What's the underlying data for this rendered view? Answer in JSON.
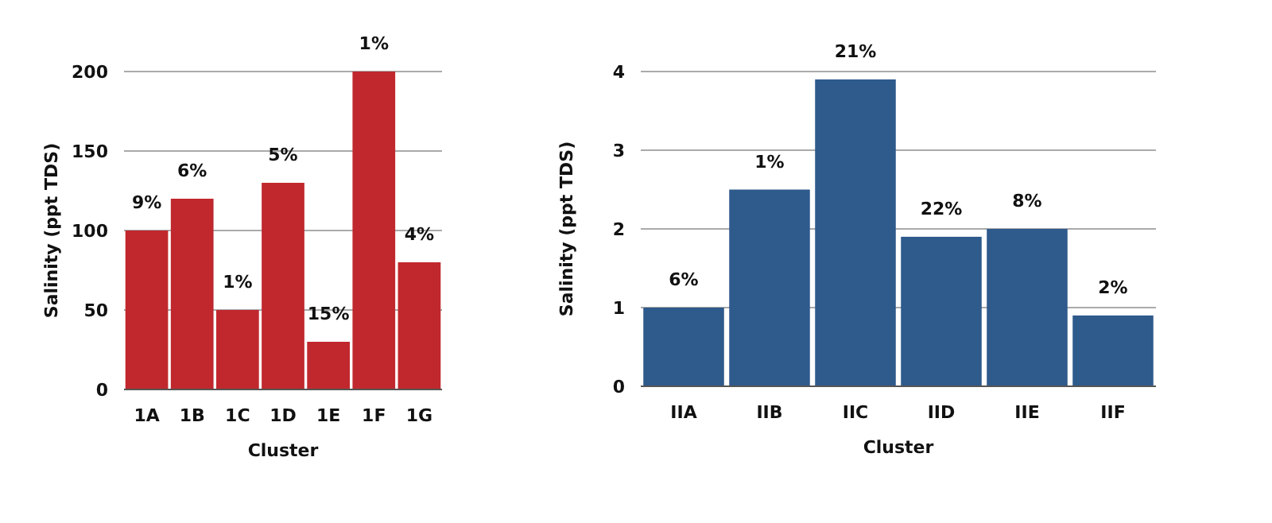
{
  "chart_data": [
    {
      "type": "bar",
      "categories": [
        "1A",
        "1B",
        "1C",
        "1D",
        "1E",
        "1F",
        "1G"
      ],
      "values": [
        100,
        120,
        50,
        130,
        30,
        200,
        80
      ],
      "color": "#c0282d",
      "xlabel": "Cluster",
      "ylabel": "Salinity (ppt TDS)",
      "ylim": [
        0,
        200
      ],
      "yticks": [
        0,
        50,
        100,
        150,
        200
      ],
      "grid": "y",
      "annotations": [
        {
          "text": "9%",
          "x": "1A",
          "y": 100
        },
        {
          "text": "6%",
          "x": "1B",
          "y": 120
        },
        {
          "text": "1%",
          "x": "1C",
          "y": 50
        },
        {
          "text": "5%",
          "x": "1D",
          "y": 130
        },
        {
          "text": "15%",
          "x": "1E",
          "y": 30
        },
        {
          "text": "1%",
          "x": "1F",
          "y": 200
        },
        {
          "text": "4%",
          "x": "1G",
          "y": 80
        }
      ]
    },
    {
      "type": "bar",
      "categories": [
        "IIA",
        "IIB",
        "IIC",
        "IID",
        "IIE",
        "IIF"
      ],
      "values": [
        1,
        2.5,
        3.9,
        1.9,
        2,
        0.9
      ],
      "color": "#2e5a8c",
      "xlabel": "Cluster",
      "ylabel": "Salinity (ppt TDS)",
      "ylim": [
        0,
        4
      ],
      "yticks": [
        0,
        1,
        2,
        3,
        4
      ],
      "grid": "y",
      "annotations": [
        {
          "text": "6%",
          "x": "IIA",
          "y": 1
        },
        {
          "text": "1%",
          "x": "IIB",
          "y": 2.5
        },
        {
          "text": "21%",
          "x": "IIC",
          "y": 3.9
        },
        {
          "text": "22%",
          "x": "IID",
          "y": 1.9
        },
        {
          "text": "8%",
          "x": "IIE",
          "y": 2
        },
        {
          "text": "2%",
          "x": "IIF",
          "y": 0.9
        }
      ]
    }
  ]
}
